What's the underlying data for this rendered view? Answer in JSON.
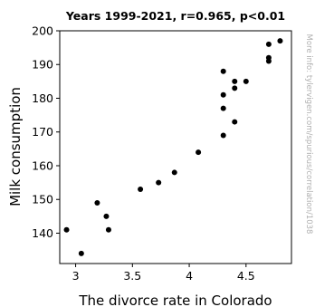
{
  "chart_data": {
    "type": "scatter",
    "title": "Years 1999-2021, r=0.965, p<0.01",
    "xlabel": "The divorce rate in Colorado",
    "ylabel": "Milk consumption",
    "side_note": "More info: tylervigen.com/spurious/correlation/1038",
    "xlim": [
      2.86,
      4.9
    ],
    "ylim": [
      131,
      200
    ],
    "x_ticks": [
      3,
      3.5,
      4,
      4.5
    ],
    "y_ticks": [
      140,
      150,
      160,
      170,
      180,
      190,
      200
    ],
    "grid": false,
    "marker_color": "#000000",
    "points": [
      {
        "x": 2.92,
        "y": 141
      },
      {
        "x": 3.05,
        "y": 134
      },
      {
        "x": 3.19,
        "y": 149
      },
      {
        "x": 3.27,
        "y": 145
      },
      {
        "x": 3.29,
        "y": 141
      },
      {
        "x": 3.57,
        "y": 153
      },
      {
        "x": 3.73,
        "y": 155
      },
      {
        "x": 3.87,
        "y": 158
      },
      {
        "x": 4.08,
        "y": 164
      },
      {
        "x": 4.3,
        "y": 188
      },
      {
        "x": 4.3,
        "y": 181
      },
      {
        "x": 4.3,
        "y": 177
      },
      {
        "x": 4.3,
        "y": 169
      },
      {
        "x": 4.4,
        "y": 185
      },
      {
        "x": 4.4,
        "y": 183
      },
      {
        "x": 4.4,
        "y": 173
      },
      {
        "x": 4.5,
        "y": 185
      },
      {
        "x": 4.7,
        "y": 196
      },
      {
        "x": 4.7,
        "y": 192
      },
      {
        "x": 4.7,
        "y": 191
      },
      {
        "x": 4.8,
        "y": 197
      }
    ]
  }
}
